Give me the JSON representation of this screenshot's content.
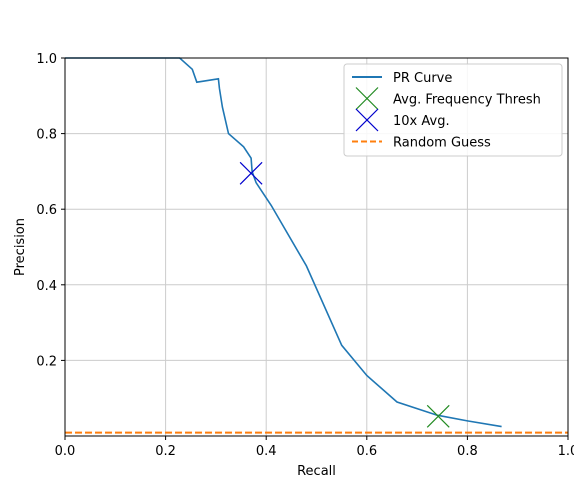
{
  "chart_data": {
    "type": "line",
    "xlabel": "Recall",
    "ylabel": "Precision",
    "xlim": [
      0.0,
      1.0
    ],
    "ylim": [
      0.0,
      1.0
    ],
    "grid": true,
    "legend_position": "top-right",
    "x_ticks": [
      "0.0",
      "0.2",
      "0.4",
      "0.6",
      "0.8",
      "1.0"
    ],
    "y_ticks": [
      "0.2",
      "0.4",
      "0.6",
      "0.8",
      "1.0"
    ],
    "x_tick_values": [
      0.0,
      0.2,
      0.4,
      0.6,
      0.8,
      1.0
    ],
    "y_tick_values": [
      0.2,
      0.4,
      0.6,
      0.8,
      1.0
    ],
    "series": [
      {
        "name": "PR Curve",
        "color": "#1f77b4",
        "style": "solid",
        "x": [
          0.0,
          0.1,
          0.2,
          0.228,
          0.253,
          0.262,
          0.305,
          0.307,
          0.313,
          0.325,
          0.355,
          0.37,
          0.372,
          0.38,
          0.41,
          0.48,
          0.55,
          0.6,
          0.66,
          0.74,
          0.8,
          0.868
        ],
        "y": [
          1.0,
          1.0,
          1.0,
          1.0,
          0.97,
          0.936,
          0.945,
          0.92,
          0.87,
          0.8,
          0.765,
          0.735,
          0.7,
          0.67,
          0.61,
          0.45,
          0.24,
          0.16,
          0.09,
          0.055,
          0.04,
          0.025
        ]
      },
      {
        "name": "Avg. Frequency Thresh",
        "color": "#228b22",
        "marker": "x",
        "x": [
          0.742
        ],
        "y": [
          0.052
        ]
      },
      {
        "name": "10x Avg.",
        "color": "#0000cd",
        "marker": "x",
        "x": [
          0.37
        ],
        "y": [
          0.695
        ]
      },
      {
        "name": "Random Guess",
        "color": "#ff7f0e",
        "style": "dashed",
        "x": [
          0.0,
          1.0
        ],
        "y": [
          0.009,
          0.009
        ]
      }
    ]
  }
}
